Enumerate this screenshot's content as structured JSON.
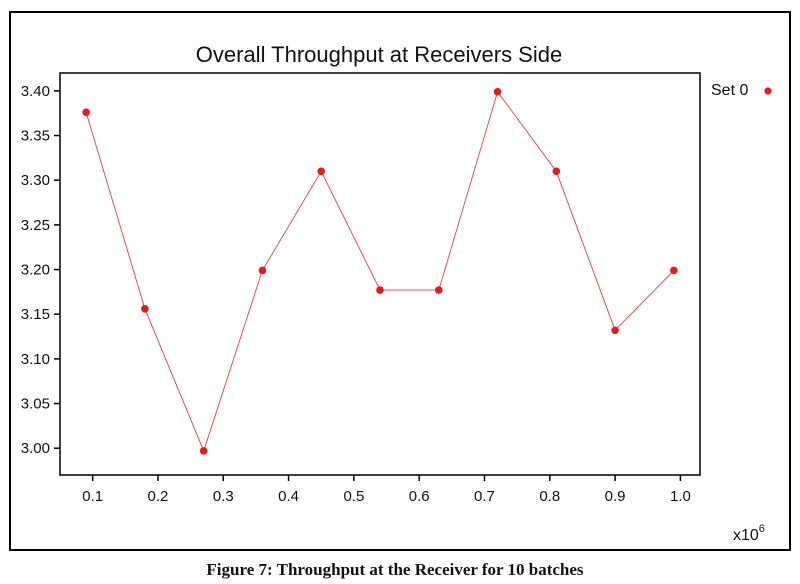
{
  "chart_data": {
    "type": "line",
    "title": "Overall Throughput at Receivers Side",
    "xlabel": "",
    "ylabel": "",
    "x_multiplier": "x10",
    "x_multiplier_exp": "6",
    "xlim": [
      0.05,
      1.03
    ],
    "ylim": [
      2.97,
      3.42
    ],
    "x_ticks": [
      "0.1",
      "0.2",
      "0.3",
      "0.4",
      "0.5",
      "0.6",
      "0.7",
      "0.8",
      "0.9",
      "1.0"
    ],
    "y_ticks": [
      "3.40",
      "3.35",
      "3.30",
      "3.25",
      "3.20",
      "3.15",
      "3.10",
      "3.05",
      "3.00"
    ],
    "grid": false,
    "legend_position": "top-right",
    "series": [
      {
        "name": "Set 0",
        "color": "#e31b1b",
        "x": [
          0.09,
          0.18,
          0.27,
          0.36,
          0.45,
          0.54,
          0.63,
          0.72,
          0.81,
          0.9,
          0.99
        ],
        "y": [
          3.376,
          3.156,
          2.997,
          3.199,
          3.31,
          3.177,
          3.177,
          3.399,
          3.31,
          3.132,
          3.199
        ]
      }
    ]
  },
  "caption": "Figure 7: Throughput at the Receiver for 10 batches"
}
